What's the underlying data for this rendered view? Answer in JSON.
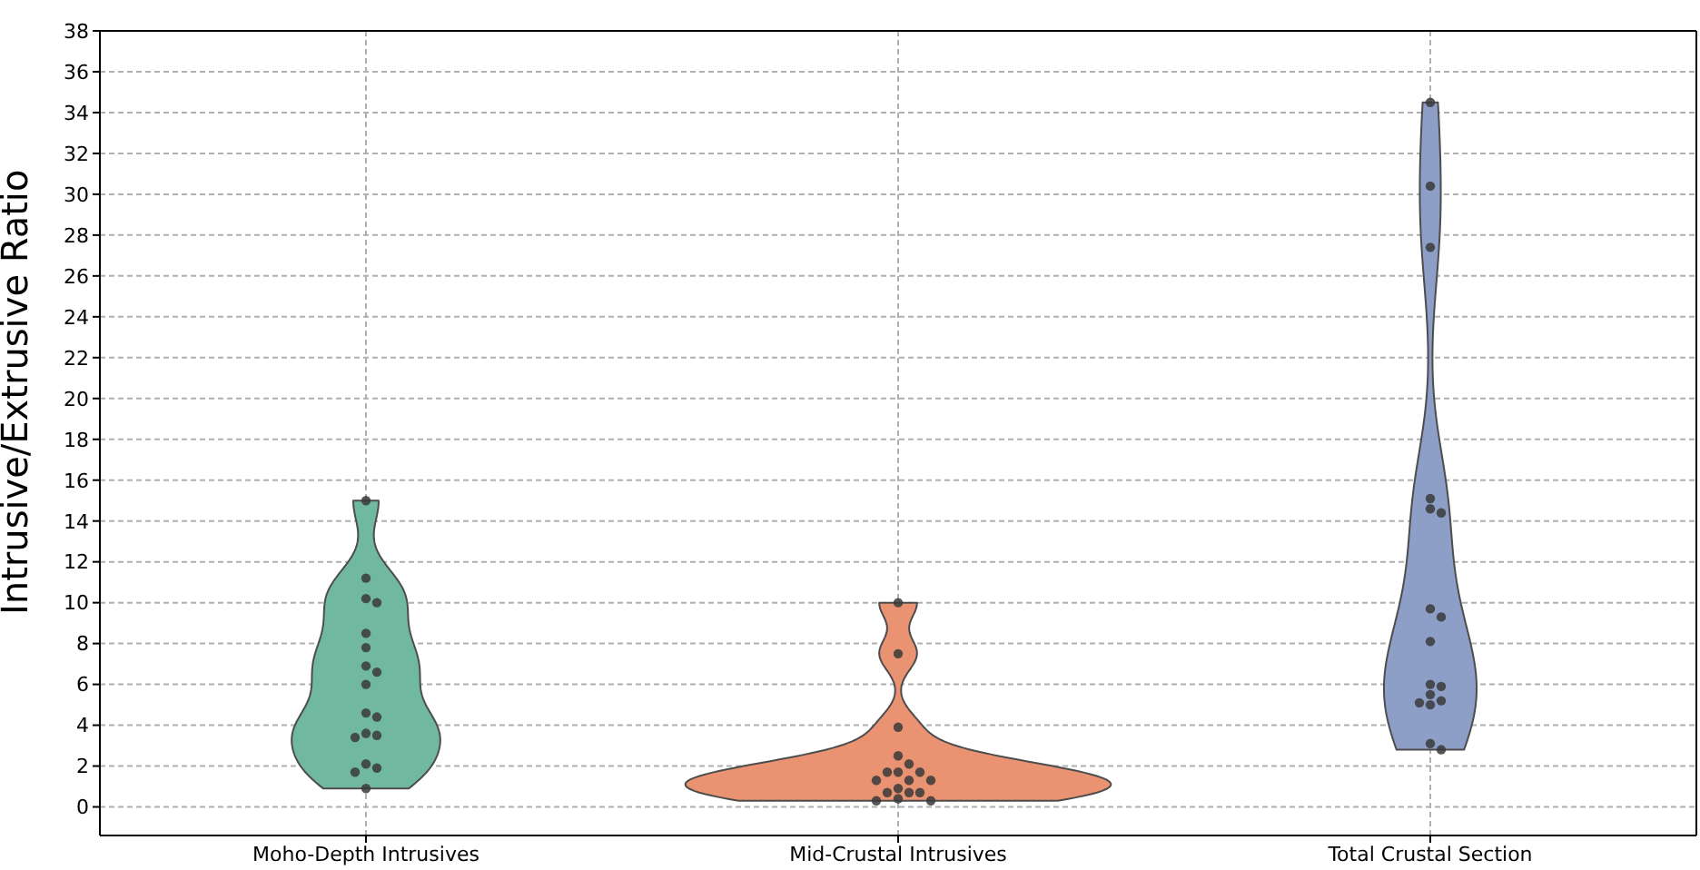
{
  "chart_data": {
    "type": "scatter",
    "ylabel": "Intrusive/Extrusive Ratio",
    "categories": [
      "Moho-Depth Intrusives",
      "Mid-Crustal Intrusives",
      "Total Crustal Section"
    ],
    "colors": [
      "#71b8a0",
      "#e99373",
      "#8d9fc6"
    ],
    "series": [
      {
        "color": "#3a3a3a",
        "x": [
          "Moho-Depth Intrusives",
          "Moho-Depth Intrusives",
          "Moho-Depth Intrusives",
          "Moho-Depth Intrusives",
          "Moho-Depth Intrusives",
          "Moho-Depth Intrusives",
          "Moho-Depth Intrusives",
          "Moho-Depth Intrusives",
          "Moho-Depth Intrusives",
          "Moho-Depth Intrusives",
          "Moho-Depth Intrusives",
          "Moho-Depth Intrusives",
          "Moho-Depth Intrusives",
          "Moho-Depth Intrusives",
          "Moho-Depth Intrusives",
          "Moho-Depth Intrusives",
          "Moho-Depth Intrusives",
          "Moho-Depth Intrusives"
        ],
        "values": [
          15.0,
          11.2,
          10.2,
          10.0,
          8.5,
          7.8,
          6.9,
          6.6,
          6.0,
          4.6,
          4.4,
          3.6,
          3.5,
          3.4,
          2.1,
          1.9,
          1.7,
          0.9
        ]
      },
      {
        "color": "#3a3a3a",
        "x": [
          "Mid-Crustal Intrusives",
          "Mid-Crustal Intrusives",
          "Mid-Crustal Intrusives",
          "Mid-Crustal Intrusives",
          "Mid-Crustal Intrusives",
          "Mid-Crustal Intrusives",
          "Mid-Crustal Intrusives",
          "Mid-Crustal Intrusives",
          "Mid-Crustal Intrusives",
          "Mid-Crustal Intrusives",
          "Mid-Crustal Intrusives",
          "Mid-Crustal Intrusives",
          "Mid-Crustal Intrusives",
          "Mid-Crustal Intrusives",
          "Mid-Crustal Intrusives",
          "Mid-Crustal Intrusives",
          "Mid-Crustal Intrusives",
          "Mid-Crustal Intrusives"
        ],
        "values": [
          10.0,
          7.5,
          3.9,
          2.5,
          2.1,
          1.7,
          1.7,
          1.7,
          1.3,
          1.3,
          1.3,
          0.9,
          0.7,
          0.7,
          0.7,
          0.4,
          0.3,
          0.3
        ]
      },
      {
        "color": "#3a3a3a",
        "x": [
          "Total Crustal Section",
          "Total Crustal Section",
          "Total Crustal Section",
          "Total Crustal Section",
          "Total Crustal Section",
          "Total Crustal Section",
          "Total Crustal Section",
          "Total Crustal Section",
          "Total Crustal Section",
          "Total Crustal Section",
          "Total Crustal Section",
          "Total Crustal Section",
          "Total Crustal Section",
          "Total Crustal Section",
          "Total Crustal Section",
          "Total Crustal Section",
          "Total Crustal Section"
        ],
        "values": [
          34.5,
          30.4,
          27.4,
          15.1,
          14.6,
          14.4,
          9.7,
          9.3,
          8.1,
          6.0,
          5.9,
          5.5,
          5.2,
          5.1,
          5.0,
          3.1,
          2.8
        ]
      }
    ],
    "ylim": [
      -1.4,
      38
    ],
    "yticks": [
      0,
      2,
      4,
      6,
      8,
      10,
      12,
      14,
      16,
      18,
      20,
      22,
      24,
      26,
      28,
      30,
      32,
      34,
      36,
      38
    ],
    "grid": true,
    "marker": "circle"
  }
}
